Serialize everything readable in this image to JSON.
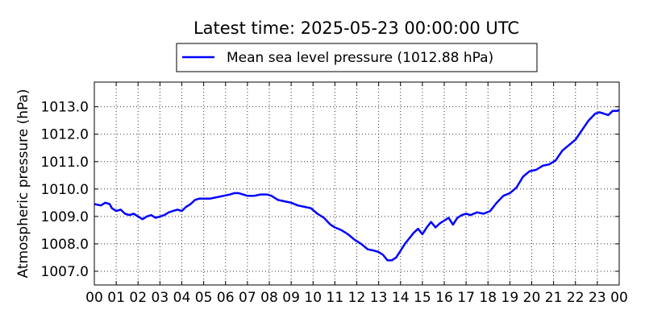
{
  "chart_data": {
    "type": "line",
    "title": "Latest time: 2025-05-23 00:00:00 UTC",
    "xlabel": "",
    "ylabel": "Atmospheric pressure (hPa)",
    "x_ticks": [
      "00",
      "01",
      "02",
      "03",
      "04",
      "05",
      "06",
      "07",
      "08",
      "09",
      "10",
      "11",
      "12",
      "13",
      "14",
      "15",
      "16",
      "17",
      "18",
      "19",
      "20",
      "21",
      "22",
      "23",
      "00"
    ],
    "y_ticks": [
      "1007.0",
      "1008.0",
      "1009.0",
      "1010.0",
      "1011.0",
      "1012.0",
      "1013.0"
    ],
    "xlim": [
      0,
      24
    ],
    "ylim": [
      1006.5,
      1013.9
    ],
    "grid": true,
    "legend_position": "top-center",
    "series": [
      {
        "name": "Mean sea level pressure (1012.88 hPa)",
        "color": "#0000ff",
        "x": [
          0,
          0.3,
          0.5,
          0.7,
          0.8,
          1.0,
          1.2,
          1.4,
          1.6,
          1.8,
          2.0,
          2.2,
          2.4,
          2.6,
          2.8,
          3.0,
          3.2,
          3.4,
          3.6,
          3.8,
          4.0,
          4.2,
          4.4,
          4.6,
          4.8,
          5.0,
          5.3,
          5.6,
          5.9,
          6.2,
          6.4,
          6.6,
          6.8,
          7.0,
          7.3,
          7.6,
          7.9,
          8.1,
          8.4,
          8.7,
          9.0,
          9.3,
          9.6,
          9.9,
          10.2,
          10.5,
          10.8,
          11.0,
          11.3,
          11.6,
          11.9,
          12.2,
          12.5,
          12.8,
          13.0,
          13.2,
          13.4,
          13.6,
          13.8,
          14.0,
          14.2,
          14.4,
          14.6,
          14.8,
          15.0,
          15.2,
          15.4,
          15.6,
          15.8,
          16.0,
          16.2,
          16.4,
          16.6,
          16.8,
          17.0,
          17.2,
          17.5,
          17.8,
          18.1,
          18.4,
          18.7,
          19.0,
          19.3,
          19.6,
          19.9,
          20.2,
          20.5,
          20.8,
          21.1,
          21.4,
          21.7,
          22.0,
          22.3,
          22.6,
          22.9,
          23.1,
          23.3,
          23.5,
          23.7,
          23.9,
          24.0
        ],
        "y": [
          1009.45,
          1009.4,
          1009.5,
          1009.45,
          1009.3,
          1009.2,
          1009.25,
          1009.1,
          1009.05,
          1009.1,
          1009.0,
          1008.9,
          1009.0,
          1009.05,
          1008.95,
          1009.0,
          1009.05,
          1009.15,
          1009.2,
          1009.25,
          1009.2,
          1009.35,
          1009.45,
          1009.6,
          1009.65,
          1009.65,
          1009.65,
          1009.7,
          1009.75,
          1009.8,
          1009.85,
          1009.85,
          1009.8,
          1009.75,
          1009.75,
          1009.8,
          1009.8,
          1009.75,
          1009.6,
          1009.55,
          1009.5,
          1009.4,
          1009.35,
          1009.3,
          1009.1,
          1008.95,
          1008.7,
          1008.6,
          1008.5,
          1008.35,
          1008.15,
          1008.0,
          1007.8,
          1007.75,
          1007.7,
          1007.6,
          1007.4,
          1007.4,
          1007.5,
          1007.75,
          1008.0,
          1008.2,
          1008.4,
          1008.55,
          1008.35,
          1008.6,
          1008.8,
          1008.6,
          1008.75,
          1008.85,
          1008.95,
          1008.7,
          1008.95,
          1009.05,
          1009.1,
          1009.05,
          1009.15,
          1009.1,
          1009.2,
          1009.5,
          1009.75,
          1009.85,
          1010.05,
          1010.45,
          1010.65,
          1010.7,
          1010.85,
          1010.9,
          1011.05,
          1011.4,
          1011.6,
          1011.8,
          1012.15,
          1012.5,
          1012.75,
          1012.8,
          1012.75,
          1012.7,
          1012.85,
          1012.85,
          1012.88
        ]
      }
    ]
  }
}
